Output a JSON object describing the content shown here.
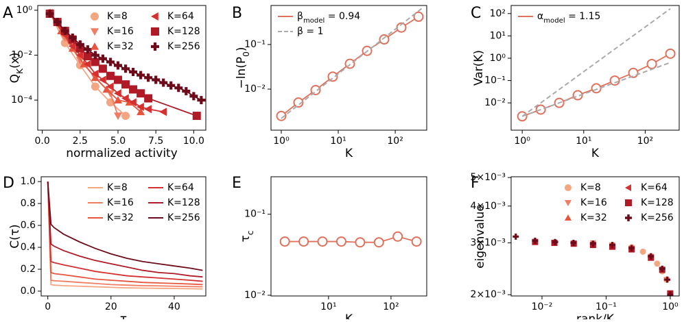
{
  "chart_data": [
    {
      "panel": "A",
      "type": "line",
      "xscale": "linear",
      "yscale": "log",
      "x_label": "normalized activity",
      "y_label": [
        "Q",
        {
          "sub": "K"
        },
        "(x)"
      ],
      "xlim": [
        -0.3,
        10.8
      ],
      "ylim": [
        4.6e-06,
        1.63
      ],
      "xticks": [
        {
          "value": 0,
          "label": "0.0"
        },
        2.5,
        {
          "value": 5,
          "label": "5.0"
        },
        7.5,
        {
          "value": 10,
          "label": "10.0"
        }
      ],
      "yticks": [
        {
          "value": 1,
          "label": "10⁰"
        },
        {
          "value": 0.01,
          "label": "10⁻²"
        },
        {
          "value": 0.0001,
          "label": "10⁻⁴"
        }
      ],
      "legend": "upper right",
      "legend_columns": 2,
      "legend_handle": "marker",
      "series": [
        {
          "name": "K=8",
          "color": "#f4a582",
          "marker": "circle",
          "x": [
            0.5,
            1.5,
            2.5,
            3.5,
            4.5,
            5.5
          ],
          "values": [
            0.75,
            0.035,
            0.0036,
            0.0004,
            8e-05,
            2e-05
          ]
        },
        {
          "name": "K=16",
          "color": "#f07c63",
          "marker": "tri-down",
          "x": [
            0.5,
            1.5,
            2.5,
            3.5,
            4.5,
            5.0
          ],
          "values": [
            0.75,
            0.06,
            0.006,
            0.001,
            0.0002,
            2e-05
          ]
        },
        {
          "name": "K=32",
          "color": "#e8553e",
          "marker": "tri-up",
          "x": [
            0.5,
            1.25,
            2.0,
            2.75,
            3.5,
            4.25,
            5.0,
            5.75,
            6.5
          ],
          "values": [
            0.75,
            0.12,
            0.02,
            0.004,
            0.001,
            0.0003,
            0.0001,
            8e-05,
            3e-05
          ]
        },
        {
          "name": "K=64",
          "color": "#d62f30",
          "marker": "tri-left",
          "x": [
            0.5,
            1.0,
            1.5,
            2.0,
            2.5,
            3.0,
            3.5,
            4.0,
            4.5,
            5.0,
            5.5,
            6.0,
            6.5,
            7.0,
            8.0
          ],
          "values": [
            0.75,
            0.25,
            0.08,
            0.025,
            0.01,
            0.004,
            0.0015,
            0.0008,
            0.0004,
            0.0002,
            0.00012,
            8e-05,
            5e-05,
            4e-05,
            3e-05
          ]
        },
        {
          "name": "K=128",
          "color": "#b01a26",
          "marker": "square",
          "x": [
            0.5,
            1.0,
            1.5,
            2.0,
            2.5,
            3.0,
            3.5,
            4.0,
            4.5,
            5.0,
            5.5,
            6.0,
            6.5,
            7.0,
            10.2
          ],
          "values": [
            0.7,
            0.3,
            0.12,
            0.05,
            0.02,
            0.009,
            0.005,
            0.0025,
            0.0012,
            0.0008,
            0.0005,
            0.0003,
            0.0002,
            0.00012,
            2e-05
          ]
        },
        {
          "name": "K=256",
          "color": "#6e0b1a",
          "marker": "plus",
          "x": [
            0.5,
            1.0,
            1.5,
            2.0,
            2.5,
            3.0,
            3.5,
            4.0,
            4.5,
            5.0,
            5.5,
            6.0,
            6.5,
            7.0,
            7.5,
            8.0,
            8.5,
            9.0,
            9.5,
            10.0,
            10.5
          ],
          "values": [
            0.7,
            0.3,
            0.12,
            0.06,
            0.03,
            0.018,
            0.01,
            0.007,
            0.005,
            0.0035,
            0.0025,
            0.0018,
            0.0013,
            0.001,
            0.0008,
            0.0006,
            0.00045,
            0.00035,
            0.00025,
            0.00015,
            0.0001
          ]
        }
      ]
    },
    {
      "panel": "B",
      "type": "line",
      "xscale": "log",
      "yscale": "log",
      "x_label": "K",
      "y_label": [
        "−ln(P",
        {
          "sub": "0"
        },
        ")"
      ],
      "xlim": [
        0.66,
        357
      ],
      "ylim": [
        0.0012,
        0.75
      ],
      "xticks": [
        {
          "value": 1,
          "label": "10⁰"
        },
        {
          "value": 10,
          "label": "10¹"
        },
        {
          "value": 100,
          "label": "10²"
        }
      ],
      "yticks": [
        {
          "value": 0.01,
          "label": "10⁻²"
        },
        {
          "value": 0.1,
          "label": "10⁻¹"
        }
      ],
      "legend": "upper left",
      "legend_columns": 1,
      "legend_handle": "line",
      "x": [
        1,
        2,
        4,
        8,
        16,
        32,
        64,
        128,
        256
      ],
      "series": [
        {
          "name": [
            "β",
            {
              "sub": "model"
            },
            " = 0.94"
          ],
          "color": "#e0705a",
          "marker": "circle-open",
          "values": [
            0.0025,
            0.005,
            0.0095,
            0.019,
            0.037,
            0.072,
            0.13,
            0.24,
            0.42
          ]
        },
        {
          "name": "β = 1",
          "color": "#aaaaaa",
          "dash": true,
          "x": [
            1,
            300
          ],
          "values": [
            0.0022,
            0.66
          ]
        }
      ]
    },
    {
      "panel": "C",
      "type": "line",
      "xscale": "log",
      "yscale": "log",
      "x_label": "K",
      "y_label": "Var(K)",
      "xlim": [
        0.66,
        357
      ],
      "ylim": [
        0.0006,
        230
      ],
      "xticks": [
        {
          "value": 1,
          "label": "10⁰"
        },
        {
          "value": 10,
          "label": "10¹"
        },
        {
          "value": 100,
          "label": "10²"
        }
      ],
      "yticks": [
        {
          "value": 0.01,
          "label": "10⁻²"
        },
        {
          "value": 0.1,
          "label": "10⁻¹"
        },
        {
          "value": 1,
          "label": "10⁰"
        },
        {
          "value": 10,
          "label": "10¹"
        },
        {
          "value": 100,
          "label": "10²"
        }
      ],
      "legend": "upper left",
      "legend_columns": 1,
      "legend_handle": "line",
      "x": [
        1,
        2,
        4,
        8,
        16,
        32,
        64,
        128,
        256
      ],
      "series": [
        {
          "name": [
            "α",
            {
              "sub": "model"
            },
            " = 1.15"
          ],
          "color": "#e0705a",
          "marker": "circle-open",
          "values": [
            0.0025,
            0.005,
            0.01,
            0.022,
            0.045,
            0.1,
            0.22,
            0.55,
            1.6
          ]
        },
        {
          "color": "#aaaaaa",
          "dash": true,
          "x": [
            1,
            256
          ],
          "values": [
            0.0025,
            164
          ]
        },
        {
          "color": "#aaaaaa",
          "dash": true,
          "x": [
            1,
            256
          ],
          "values": [
            0.0025,
            0.64
          ]
        }
      ]
    },
    {
      "panel": "D",
      "type": "line",
      "xscale": "linear",
      "yscale": "linear",
      "x_label": "τ",
      "y_label": "C(τ)",
      "xlim": [
        -2.1,
        50
      ],
      "ylim": [
        -0.044,
        1.044
      ],
      "xticks": [
        0,
        20,
        40
      ],
      "yticks": [
        {
          "value": 0,
          "label": "0.0"
        },
        0.2,
        0.4,
        0.6,
        0.8,
        {
          "value": 1,
          "label": "1.0"
        }
      ],
      "legend": "upper right",
      "legend_columns": 2,
      "legend_handle": "line",
      "x": [
        0,
        1,
        2,
        5,
        10,
        15,
        20,
        25,
        30,
        35,
        40,
        45,
        49
      ],
      "series": [
        {
          "name": "K=8",
          "color": "#f4a582",
          "values": [
            1.0,
            0.06,
            0.055,
            0.05,
            0.045,
            0.04,
            0.035,
            0.03,
            0.028,
            0.026,
            0.024,
            0.022,
            0.02
          ]
        },
        {
          "name": "K=16",
          "color": "#f07c63",
          "values": [
            1.0,
            0.1,
            0.095,
            0.09,
            0.08,
            0.07,
            0.06,
            0.055,
            0.05,
            0.048,
            0.045,
            0.042,
            0.04
          ]
        },
        {
          "name": "K=32",
          "color": "#e8553e",
          "values": [
            1.0,
            0.17,
            0.16,
            0.15,
            0.13,
            0.11,
            0.1,
            0.09,
            0.08,
            0.075,
            0.07,
            0.065,
            0.06
          ]
        },
        {
          "name": "K=64",
          "color": "#d62f30",
          "values": [
            1.0,
            0.27,
            0.26,
            0.24,
            0.21,
            0.18,
            0.16,
            0.14,
            0.13,
            0.12,
            0.11,
            0.1,
            0.09
          ]
        },
        {
          "name": "K=128",
          "color": "#b01a26",
          "values": [
            1.0,
            0.43,
            0.41,
            0.37,
            0.32,
            0.28,
            0.25,
            0.22,
            0.19,
            0.17,
            0.16,
            0.14,
            0.13
          ]
        },
        {
          "name": "K=256",
          "color": "#6e0b1a",
          "values": [
            1.0,
            0.61,
            0.58,
            0.52,
            0.45,
            0.39,
            0.34,
            0.3,
            0.27,
            0.25,
            0.23,
            0.21,
            0.19
          ]
        }
      ]
    },
    {
      "panel": "E",
      "type": "line",
      "xscale": "log",
      "yscale": "log",
      "x_label": "K",
      "y_label": [
        "τ",
        {
          "sub": "c"
        }
      ],
      "xlim": [
        1.2,
        373
      ],
      "ylim": [
        0.0098,
        0.29
      ],
      "xticks": [
        {
          "value": 10,
          "label": "10¹"
        },
        {
          "value": 100,
          "label": "10²"
        }
      ],
      "yticks": [
        {
          "value": 0.01,
          "label": "10⁻²"
        },
        {
          "value": 0.1,
          "label": "10⁻¹"
        }
      ],
      "x": [
        2,
        4,
        8,
        16,
        32,
        64,
        128,
        256
      ],
      "series": [
        {
          "color": "#e0705a",
          "marker": "circle-open",
          "values": [
            0.046,
            0.046,
            0.046,
            0.046,
            0.045,
            0.045,
            0.053,
            0.046
          ]
        }
      ]
    },
    {
      "panel": "F",
      "type": "scatter",
      "xscale": "log",
      "yscale": "log",
      "x_label": "rank/K",
      "y_label": "eigenvalue",
      "xlim": [
        0.0033,
        1.38
      ],
      "ylim": [
        0.00198,
        0.00503
      ],
      "xticks": [
        {
          "value": 0.01,
          "label": "10⁻²"
        },
        {
          "value": 0.1,
          "label": "10⁻¹"
        },
        {
          "value": 1,
          "label": "10⁰"
        }
      ],
      "yticks": [
        {
          "value": 0.002,
          "label": "2×10⁻³"
        },
        {
          "value": 0.003,
          "label": "3×10⁻³"
        },
        {
          "value": 0.004,
          "label": "4×10⁻³"
        },
        {
          "value": 0.005,
          "label": "5×10⁻³"
        }
      ],
      "legend": "upper right",
      "legend_columns": 2,
      "legend_handle": "marker",
      "series": [
        {
          "name": "K=8",
          "color": "#f4a582",
          "marker": "circle",
          "x": [
            0.125,
            0.25,
            0.375,
            0.5,
            0.625,
            0.75,
            0.875,
            1.0
          ],
          "values": [
            0.00295,
            0.0029,
            0.0028,
            0.0027,
            0.00255,
            0.0024,
            0.00225,
            0.00202
          ]
        },
        {
          "name": "K=16",
          "color": "#f07c63",
          "marker": "tri-down",
          "x": [
            0.0625,
            0.125,
            0.25,
            0.5,
            0.75,
            0.875,
            1.0
          ],
          "values": [
            0.003,
            0.00295,
            0.00288,
            0.0027,
            0.00242,
            0.00225,
            0.00202
          ]
        },
        {
          "name": "K=32",
          "color": "#e8553e",
          "marker": "tri-up",
          "x": [
            0.03125,
            0.0625,
            0.125,
            0.25,
            0.5,
            0.75,
            1.0
          ],
          "values": [
            0.003,
            0.00298,
            0.00293,
            0.00287,
            0.00268,
            0.00242,
            0.00202
          ]
        },
        {
          "name": "K=64",
          "color": "#d62f30",
          "marker": "tri-left",
          "x": [
            0.0156,
            0.03125,
            0.0625,
            0.125,
            0.25,
            0.5,
            0.75,
            1.0
          ],
          "values": [
            0.003,
            0.00299,
            0.00296,
            0.00292,
            0.00286,
            0.00268,
            0.00243,
            0.00202
          ]
        },
        {
          "name": "K=128",
          "color": "#b01a26",
          "marker": "square",
          "x": [
            0.0078,
            0.0156,
            0.03125,
            0.0625,
            0.125,
            0.25,
            0.5,
            0.75,
            1.0
          ],
          "values": [
            0.00302,
            0.003,
            0.00298,
            0.00295,
            0.00291,
            0.00285,
            0.00267,
            0.00243,
            0.00202
          ]
        },
        {
          "name": "K=256",
          "color": "#6e0b1a",
          "marker": "plus",
          "x": [
            0.0039,
            0.0078,
            0.016,
            0.031,
            0.0625,
            0.125,
            0.25,
            0.5,
            0.75,
            0.9,
            1.0
          ],
          "values": [
            0.00315,
            0.00305,
            0.00302,
            0.003,
            0.00298,
            0.00295,
            0.00288,
            0.0027,
            0.00245,
            0.00225,
            0.002
          ]
        }
      ]
    }
  ]
}
